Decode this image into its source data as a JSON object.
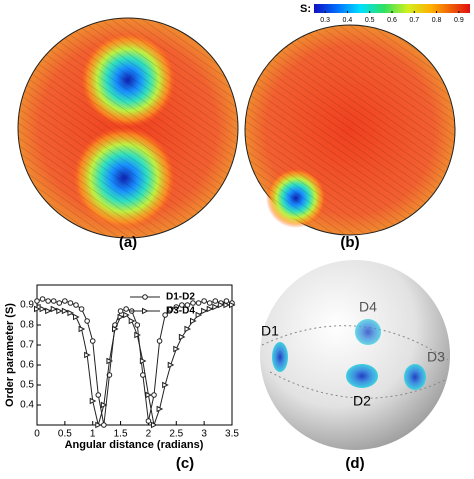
{
  "colorbar": {
    "label": "S:",
    "lim": [
      0.25,
      0.95
    ],
    "ticks": [
      0.3,
      0.4,
      0.5,
      0.6,
      0.7,
      0.8,
      0.9
    ]
  },
  "panels": {
    "a": "(a)",
    "b": "(b)",
    "c": "(c)",
    "d": "(d)"
  },
  "chart_data": {
    "type": "line",
    "x_label": "Angular distance (radians)",
    "y_label": "Order parameter (S)",
    "x": [
      0,
      0.1,
      0.2,
      0.3,
      0.4,
      0.5,
      0.6,
      0.7,
      0.8,
      0.9,
      1.0,
      1.1,
      1.2,
      1.3,
      1.4,
      1.5,
      1.6,
      1.7,
      1.8,
      1.9,
      2.0,
      2.1,
      2.2,
      2.3,
      2.4,
      2.5,
      2.6,
      2.7,
      2.8,
      2.9,
      3.0,
      3.1,
      3.2,
      3.3,
      3.4,
      3.5
    ],
    "series": [
      {
        "name": "D1-D2",
        "color": "#222222",
        "values": [
          0.92,
          0.93,
          0.92,
          0.92,
          0.91,
          0.92,
          0.91,
          0.9,
          0.88,
          0.82,
          0.72,
          0.45,
          0.3,
          0.55,
          0.8,
          0.87,
          0.88,
          0.87,
          0.8,
          0.55,
          0.32,
          0.45,
          0.72,
          0.85,
          0.88,
          0.89,
          0.9,
          0.9,
          0.91,
          0.91,
          0.92,
          0.91,
          0.92,
          0.91,
          0.92,
          0.91
        ]
      },
      {
        "name": "D3-D4",
        "color": "#222222",
        "values": [
          0.88,
          0.88,
          0.87,
          0.88,
          0.87,
          0.87,
          0.86,
          0.84,
          0.78,
          0.65,
          0.42,
          0.3,
          0.4,
          0.62,
          0.78,
          0.84,
          0.85,
          0.82,
          0.75,
          0.62,
          0.45,
          0.3,
          0.38,
          0.5,
          0.6,
          0.68,
          0.74,
          0.78,
          0.82,
          0.85,
          0.87,
          0.88,
          0.89,
          0.9,
          0.9,
          0.9
        ]
      }
    ],
    "xlim": [
      0,
      3.5
    ],
    "xticks": [
      0,
      0.5,
      1,
      1.5,
      2,
      2.5,
      3,
      3.5
    ],
    "ylim": [
      0.3,
      1.0
    ],
    "yticks": [
      0.4,
      0.5,
      0.6,
      0.7,
      0.8,
      0.9
    ]
  },
  "sphere": {
    "labels": [
      "D1",
      "D2",
      "D3",
      "D4"
    ]
  }
}
